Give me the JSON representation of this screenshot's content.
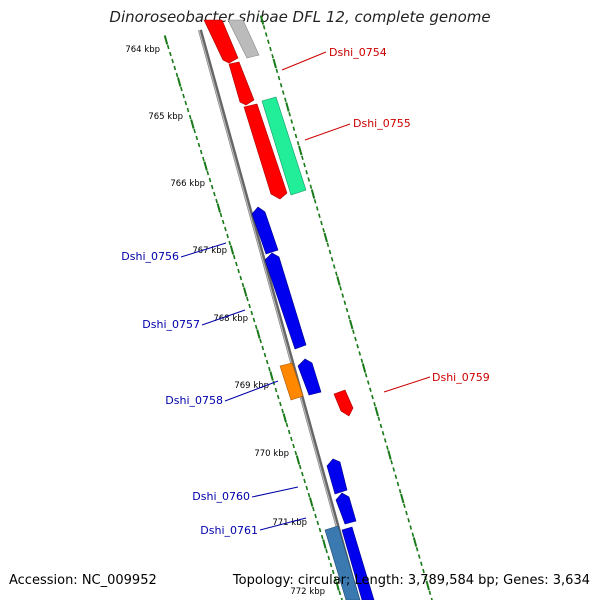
{
  "title": "Dinoroseobacter shibae DFL 12, complete genome",
  "accession": "Accession: NC_009952",
  "summary": "Topology: circular; Length: 3,789,584 bp; Genes: 3,634",
  "colors": {
    "backbone": "#8a8a8a",
    "tick": "#1a7a1a",
    "gene_red": "#ff0000",
    "gene_blue": "#0000ee",
    "gene_green": "#22ee99",
    "gene_orange": "#ff8800",
    "gene_gray": "#bbbbbb",
    "gene_steel": "#3a7ab0",
    "label_red": "#cc0000",
    "label_blue": "#0000aa"
  },
  "scale_labels": [
    "764 kbp",
    "765 kbp",
    "766 kbp",
    "767 kbp",
    "768 kbp",
    "769 kbp",
    "770 kbp",
    "771 kbp",
    "772 kbp"
  ],
  "gene_labels": {
    "right": [
      "Dshi_0754",
      "Dshi_0755",
      "Dshi_0759"
    ],
    "left": [
      "Dshi_0756",
      "Dshi_0757",
      "Dshi_0758",
      "Dshi_0760",
      "Dshi_0761"
    ]
  }
}
